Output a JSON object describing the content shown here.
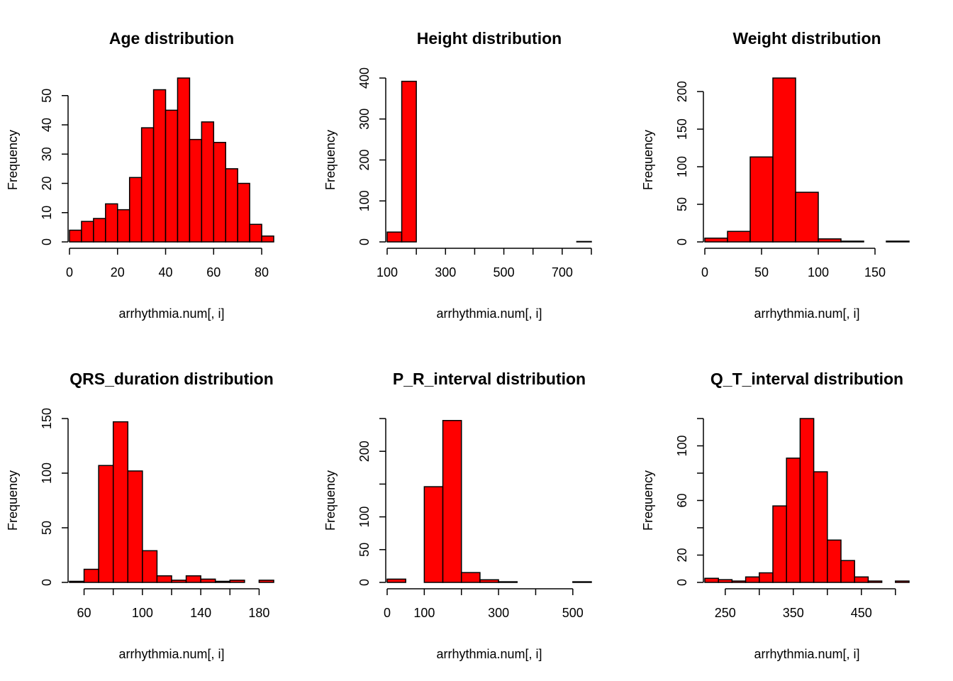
{
  "figure": {
    "background": "#ffffff",
    "bar_fill": "#ff0000",
    "bar_stroke": "#000000"
  },
  "chart_data": [
    {
      "type": "bar",
      "title": "Age distribution",
      "xlabel": "arrhythmia.num[, i]",
      "ylabel": "Frequency",
      "bins": [
        [
          0,
          5
        ],
        [
          5,
          10
        ],
        [
          10,
          15
        ],
        [
          15,
          20
        ],
        [
          20,
          25
        ],
        [
          25,
          30
        ],
        [
          30,
          35
        ],
        [
          35,
          40
        ],
        [
          40,
          45
        ],
        [
          45,
          50
        ],
        [
          50,
          55
        ],
        [
          55,
          60
        ],
        [
          60,
          65
        ],
        [
          65,
          70
        ],
        [
          70,
          75
        ],
        [
          75,
          80
        ],
        [
          80,
          85
        ]
      ],
      "values": [
        4,
        7,
        8,
        13,
        11,
        22,
        39,
        52,
        45,
        56,
        35,
        41,
        34,
        25,
        20,
        6,
        2
      ],
      "xticks": [
        0,
        20,
        40,
        60,
        80
      ],
      "xtick_labels": [
        "0",
        "20",
        "40",
        "60",
        "80"
      ],
      "yticks": [
        0,
        10,
        20,
        30,
        40,
        50
      ],
      "ytick_labels": [
        "0",
        "10",
        "20",
        "30",
        "40",
        "50"
      ],
      "xlim": [
        0,
        85
      ],
      "ylim": [
        0,
        56
      ]
    },
    {
      "type": "bar",
      "title": "Height distribution",
      "xlabel": "arrhythmia.num[, i]",
      "ylabel": "Frequency",
      "bins": [
        [
          100,
          150
        ],
        [
          150,
          200
        ],
        [
          200,
          250
        ],
        [
          250,
          300
        ],
        [
          300,
          350
        ],
        [
          350,
          400
        ],
        [
          400,
          450
        ],
        [
          450,
          500
        ],
        [
          500,
          550
        ],
        [
          550,
          600
        ],
        [
          600,
          650
        ],
        [
          650,
          700
        ],
        [
          700,
          750
        ],
        [
          750,
          800
        ]
      ],
      "values": [
        24,
        392,
        0,
        0,
        0,
        0,
        0,
        0,
        0,
        0,
        0,
        0,
        0,
        1
      ],
      "xticks": [
        100,
        200,
        300,
        400,
        500,
        600,
        700,
        800
      ],
      "xtick_labels": [
        "100",
        "",
        "300",
        "",
        "500",
        "",
        "700",
        ""
      ],
      "yticks": [
        0,
        100,
        200,
        300,
        400
      ],
      "ytick_labels": [
        "0",
        "100",
        "200",
        "300",
        "400"
      ],
      "xlim": [
        100,
        800
      ],
      "ylim": [
        0,
        400
      ]
    },
    {
      "type": "bar",
      "title": "Weight distribution",
      "xlabel": "arrhythmia.num[, i]",
      "ylabel": "Frequency",
      "bins": [
        [
          0,
          20
        ],
        [
          20,
          40
        ],
        [
          40,
          60
        ],
        [
          60,
          80
        ],
        [
          80,
          100
        ],
        [
          100,
          120
        ],
        [
          120,
          140
        ],
        [
          140,
          160
        ],
        [
          160,
          180
        ]
      ],
      "values": [
        5,
        14,
        113,
        218,
        66,
        4,
        1,
        0,
        1
      ],
      "xticks": [
        0,
        50,
        100,
        150
      ],
      "xtick_labels": [
        "0",
        "50",
        "100",
        "150"
      ],
      "yticks": [
        0,
        50,
        100,
        150,
        200
      ],
      "ytick_labels": [
        "0",
        "50",
        "100",
        "150",
        "200"
      ],
      "xlim": [
        0,
        180
      ],
      "ylim": [
        0,
        218
      ]
    },
    {
      "type": "bar",
      "title": "QRS_duration distribution",
      "xlabel": "arrhythmia.num[, i]",
      "ylabel": "Frequency",
      "bins": [
        [
          50,
          60
        ],
        [
          60,
          70
        ],
        [
          70,
          80
        ],
        [
          80,
          90
        ],
        [
          90,
          100
        ],
        [
          100,
          110
        ],
        [
          110,
          120
        ],
        [
          120,
          130
        ],
        [
          130,
          140
        ],
        [
          140,
          150
        ],
        [
          150,
          160
        ],
        [
          160,
          170
        ],
        [
          170,
          180
        ],
        [
          180,
          190
        ]
      ],
      "values": [
        1,
        12,
        107,
        147,
        102,
        29,
        6,
        2,
        6,
        3,
        1,
        2,
        0,
        2
      ],
      "xticks": [
        60,
        80,
        100,
        120,
        140,
        160,
        180
      ],
      "xtick_labels": [
        "60",
        "",
        "100",
        "",
        "140",
        "",
        "180"
      ],
      "yticks": [
        0,
        50,
        100,
        150
      ],
      "ytick_labels": [
        "0",
        "50",
        "100",
        "150"
      ],
      "xlim": [
        50,
        190
      ],
      "ylim": [
        0,
        150
      ]
    },
    {
      "type": "bar",
      "title": "P_R_interval distribution",
      "xlabel": "arrhythmia.num[, i]",
      "ylabel": "Frequency",
      "bins": [
        [
          0,
          50
        ],
        [
          50,
          100
        ],
        [
          100,
          150
        ],
        [
          150,
          200
        ],
        [
          200,
          250
        ],
        [
          250,
          300
        ],
        [
          300,
          350
        ],
        [
          350,
          400
        ],
        [
          400,
          450
        ],
        [
          450,
          500
        ],
        [
          500,
          550
        ]
      ],
      "values": [
        5,
        0,
        146,
        247,
        15,
        4,
        1,
        0,
        0,
        0,
        1
      ],
      "xticks": [
        0,
        100,
        200,
        300,
        400,
        500
      ],
      "xtick_labels": [
        "0",
        "100",
        "",
        "300",
        "",
        "500"
      ],
      "yticks": [
        0,
        50,
        100,
        150,
        200,
        250
      ],
      "ytick_labels": [
        "0",
        "50",
        "100",
        "",
        "200",
        ""
      ],
      "xlim": [
        0,
        550
      ],
      "ylim": [
        0,
        250
      ]
    },
    {
      "type": "bar",
      "title": "Q_T_interval distribution",
      "xlabel": "arrhythmia.num[, i]",
      "ylabel": "Frequency",
      "bins": [
        [
          220,
          240
        ],
        [
          240,
          260
        ],
        [
          260,
          280
        ],
        [
          280,
          300
        ],
        [
          300,
          320
        ],
        [
          320,
          340
        ],
        [
          340,
          360
        ],
        [
          360,
          380
        ],
        [
          380,
          400
        ],
        [
          400,
          420
        ],
        [
          420,
          440
        ],
        [
          440,
          460
        ],
        [
          460,
          480
        ],
        [
          480,
          500
        ],
        [
          500,
          520
        ]
      ],
      "values": [
        3,
        2,
        1,
        4,
        7,
        56,
        91,
        120,
        81,
        31,
        16,
        4,
        1,
        0,
        1
      ],
      "xticks": [
        250,
        300,
        350,
        400,
        450,
        500
      ],
      "xtick_labels": [
        "250",
        "",
        "350",
        "",
        "450",
        ""
      ],
      "yticks": [
        0,
        20,
        40,
        60,
        80,
        100,
        120
      ],
      "ytick_labels": [
        "0",
        "20",
        "",
        "60",
        "",
        "100",
        ""
      ],
      "xlim": [
        220,
        520
      ],
      "ylim": [
        0,
        120
      ]
    }
  ]
}
